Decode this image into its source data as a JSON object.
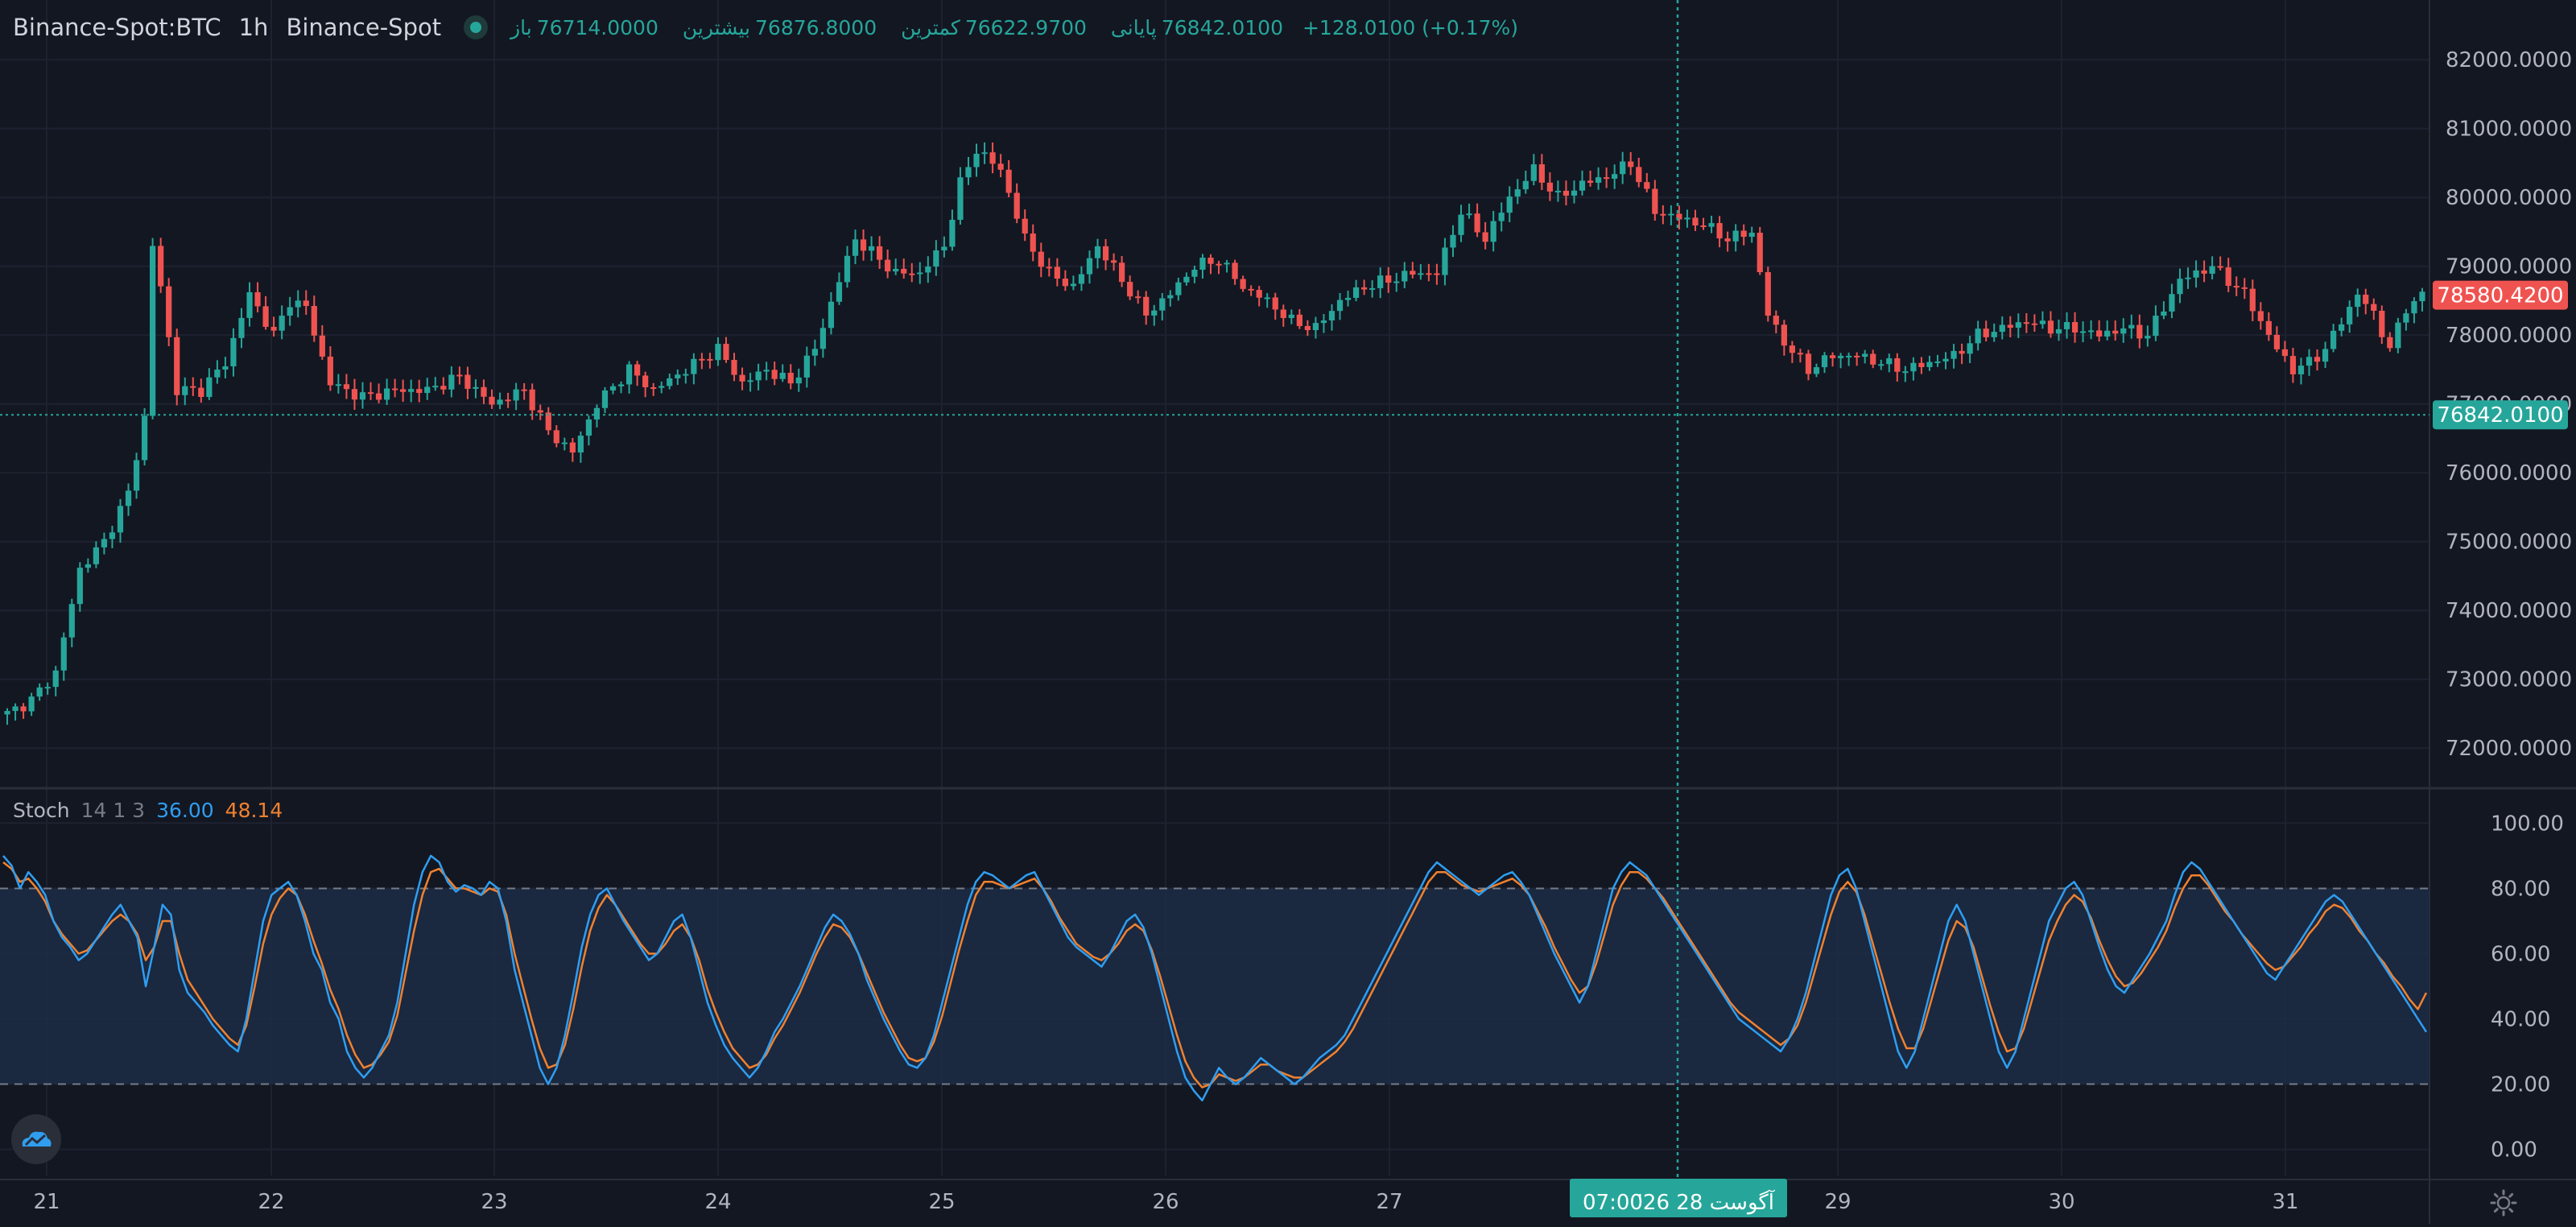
{
  "header": {
    "symbol": "Binance-Spot:BTC",
    "interval": "1h",
    "exchange": "Binance-Spot",
    "open_label": "باز",
    "open_value": "76714.0000",
    "high_label": "بیشترین",
    "high_value": "76876.8000",
    "low_label": "کمترین",
    "low_value": "76622.9700",
    "close_label": "پایانی",
    "close_value": "76842.0100",
    "change": "+128.0100 (+0.17%)"
  },
  "stoch_legend": {
    "name": "Stoch",
    "params": "14 1 3",
    "k_value": "36.00",
    "d_value": "48.14"
  },
  "crosshair": {
    "date_label": "'26 آگوست 28",
    "time_label": "07:00"
  },
  "colors": {
    "background": "#131722",
    "up": "#26a69a",
    "down": "#ef5350",
    "k_line": "#2f9ef0",
    "d_line": "#f0812f",
    "band": "#1c2b45"
  },
  "chart_data": [
    {
      "type": "candlestick",
      "title": "",
      "ylim": [
        71500,
        82400
      ],
      "y_ticks": [
        "72000.0000",
        "73000.0000",
        "74000.0000",
        "75000.0000",
        "76000.0000",
        "77000.0000",
        "78000.0000",
        "79000.0000",
        "80000.0000",
        "81000.0000",
        "82000.0000"
      ],
      "x_ticks": [
        "21",
        "22",
        "23",
        "24",
        "25",
        "26",
        "27",
        "29",
        "30",
        "31"
      ],
      "last_price": {
        "label": "76842.0100",
        "value": 76842.01
      },
      "marker_price": {
        "label": "78580.4200",
        "value": 78580.42
      },
      "close_anchors": [
        [
          0,
          72500
        ],
        [
          3,
          72700
        ],
        [
          6,
          73100
        ],
        [
          9,
          74600
        ],
        [
          12,
          75000
        ],
        [
          15,
          75700
        ],
        [
          17,
          76800
        ],
        [
          18,
          79300
        ],
        [
          19,
          78700
        ],
        [
          21,
          77200
        ],
        [
          24,
          77200
        ],
        [
          27,
          77600
        ],
        [
          30,
          78600
        ],
        [
          33,
          78000
        ],
        [
          35,
          78500
        ],
        [
          37,
          78400
        ],
        [
          40,
          77300
        ],
        [
          44,
          77100
        ],
        [
          48,
          77200
        ],
        [
          52,
          77200
        ],
        [
          56,
          77400
        ],
        [
          60,
          77000
        ],
        [
          64,
          77200
        ],
        [
          67,
          76600
        ],
        [
          70,
          76300
        ],
        [
          73,
          77000
        ],
        [
          77,
          77500
        ],
        [
          80,
          77200
        ],
        [
          84,
          77500
        ],
        [
          88,
          77800
        ],
        [
          91,
          77300
        ],
        [
          94,
          77500
        ],
        [
          97,
          77300
        ],
        [
          100,
          77800
        ],
        [
          103,
          78800
        ],
        [
          105,
          79400
        ],
        [
          107,
          79200
        ],
        [
          110,
          78900
        ],
        [
          113,
          78900
        ],
        [
          116,
          79300
        ],
        [
          118,
          80200
        ],
        [
          120,
          80700
        ],
        [
          123,
          80400
        ],
        [
          126,
          79400
        ],
        [
          129,
          78900
        ],
        [
          132,
          78700
        ],
        [
          135,
          79300
        ],
        [
          138,
          78800
        ],
        [
          141,
          78300
        ],
        [
          144,
          78600
        ],
        [
          147,
          79000
        ],
        [
          150,
          79100
        ],
        [
          153,
          78700
        ],
        [
          156,
          78500
        ],
        [
          159,
          78200
        ],
        [
          162,
          78100
        ],
        [
          165,
          78500
        ],
        [
          168,
          78700
        ],
        [
          171,
          78800
        ],
        [
          174,
          78900
        ],
        [
          177,
          78900
        ],
        [
          180,
          79800
        ],
        [
          183,
          79400
        ],
        [
          186,
          80000
        ],
        [
          189,
          80400
        ],
        [
          192,
          80000
        ],
        [
          195,
          80200
        ],
        [
          198,
          80300
        ],
        [
          201,
          80500
        ],
        [
          204,
          79800
        ],
        [
          207,
          79700
        ],
        [
          210,
          79600
        ],
        [
          213,
          79400
        ],
        [
          216,
          79500
        ],
        [
          218,
          78300
        ],
        [
          220,
          77900
        ],
        [
          223,
          77500
        ],
        [
          226,
          77700
        ],
        [
          229,
          77700
        ],
        [
          232,
          77600
        ],
        [
          235,
          77500
        ],
        [
          238,
          77600
        ],
        [
          241,
          77700
        ],
        [
          244,
          78000
        ],
        [
          247,
          78100
        ],
        [
          250,
          78200
        ],
        [
          253,
          78100
        ],
        [
          256,
          78100
        ],
        [
          259,
          78000
        ],
        [
          262,
          78100
        ],
        [
          265,
          78000
        ],
        [
          267,
          78400
        ],
        [
          269,
          78800
        ],
        [
          271,
          78900
        ],
        [
          273,
          79000
        ],
        [
          275,
          78800
        ],
        [
          277,
          78600
        ],
        [
          279,
          78200
        ],
        [
          281,
          77800
        ],
        [
          283,
          77500
        ],
        [
          285,
          77600
        ],
        [
          287,
          77800
        ],
        [
          289,
          78200
        ],
        [
          291,
          78600
        ],
        [
          293,
          78300
        ],
        [
          295,
          77800
        ],
        [
          297,
          78400
        ],
        [
          299,
          78580
        ]
      ]
    },
    {
      "type": "line",
      "title": "",
      "ylim": [
        -8,
        108
      ],
      "y_ticks": [
        "0.00",
        "20.00",
        "40.00",
        "60.00",
        "80.00",
        "100.00"
      ],
      "band": [
        20,
        80
      ],
      "series": [
        {
          "name": "",
          "values": [
            90,
            87,
            80,
            85,
            82,
            78,
            70,
            65,
            62,
            58,
            60,
            64,
            68,
            72,
            75,
            70,
            65,
            50,
            62,
            75,
            72,
            55,
            48,
            45,
            42,
            38,
            35,
            32,
            30,
            40,
            55,
            70,
            78,
            80,
            82,
            78,
            70,
            60,
            55,
            45,
            40,
            30,
            25,
            22,
            25,
            30,
            35,
            45,
            60,
            75,
            85,
            90,
            88,
            82,
            79,
            81,
            80,
            78,
            82,
            80,
            70,
            55,
            45,
            35,
            25,
            20,
            25,
            35,
            48,
            62,
            72,
            78,
            80,
            75,
            70,
            66,
            62,
            58,
            60,
            65,
            70,
            72,
            65,
            55,
            45,
            38,
            32,
            28,
            25,
            22,
            25,
            30,
            36,
            40,
            45,
            50,
            56,
            62,
            68,
            72,
            70,
            66,
            60,
            52,
            46,
            40,
            35,
            30,
            26,
            25,
            28,
            35,
            45,
            55,
            65,
            75,
            82,
            85,
            84,
            82,
            80,
            82,
            84,
            85,
            80,
            75,
            70,
            65,
            62,
            60,
            58,
            56,
            60,
            65,
            70,
            72,
            68,
            60,
            50,
            40,
            30,
            22,
            18,
            15,
            20,
            25,
            22,
            20,
            22,
            25,
            28,
            26,
            24,
            22,
            20,
            22,
            25,
            28,
            30,
            32,
            35,
            40,
            45,
            50,
            55,
            60,
            65,
            70,
            75,
            80,
            85,
            88,
            86,
            84,
            82,
            80,
            78,
            80,
            82,
            84,
            85,
            82,
            78,
            72,
            66,
            60,
            55,
            50,
            45,
            50,
            60,
            70,
            80,
            85,
            88,
            86,
            84,
            80,
            76,
            72,
            68,
            64,
            60,
            56,
            52,
            48,
            44,
            40,
            38,
            36,
            34,
            32,
            30,
            34,
            40,
            48,
            58,
            68,
            78,
            84,
            86,
            80,
            70,
            60,
            50,
            40,
            30,
            25,
            30,
            40,
            50,
            60,
            70,
            75,
            70,
            60,
            50,
            40,
            30,
            25,
            30,
            40,
            50,
            60,
            70,
            75,
            80,
            82,
            78,
            70,
            62,
            55,
            50,
            48,
            52,
            56,
            60,
            65,
            70,
            78,
            85,
            88,
            86,
            82,
            78,
            74,
            70,
            66,
            62,
            58,
            54,
            52,
            56,
            60,
            64,
            68,
            72,
            76,
            78,
            76,
            72,
            68,
            64,
            60,
            56,
            52,
            48,
            44,
            40,
            36
          ]
        },
        {
          "name": "",
          "values": [
            88,
            86,
            82,
            83,
            80,
            76,
            70,
            66,
            63,
            60,
            61,
            64,
            67,
            70,
            72,
            70,
            66,
            58,
            62,
            70,
            70,
            60,
            52,
            48,
            44,
            40,
            37,
            34,
            32,
            38,
            50,
            63,
            72,
            77,
            80,
            78,
            72,
            64,
            57,
            49,
            43,
            35,
            29,
            25,
            26,
            29,
            33,
            41,
            54,
            67,
            78,
            85,
            86,
            83,
            80,
            80,
            79,
            78,
            80,
            79,
            72,
            60,
            50,
            40,
            31,
            25,
            26,
            32,
            43,
            56,
            67,
            74,
            78,
            75,
            71,
            67,
            63,
            60,
            60,
            63,
            67,
            69,
            65,
            58,
            49,
            42,
            36,
            31,
            28,
            25,
            26,
            29,
            34,
            38,
            43,
            48,
            54,
            60,
            65,
            69,
            68,
            65,
            60,
            54,
            48,
            42,
            37,
            32,
            28,
            27,
            28,
            33,
            41,
            51,
            61,
            70,
            78,
            82,
            82,
            81,
            80,
            81,
            82,
            83,
            80,
            76,
            71,
            67,
            63,
            61,
            59,
            58,
            60,
            63,
            67,
            69,
            67,
            61,
            53,
            44,
            35,
            27,
            22,
            19,
            20,
            23,
            22,
            21,
            22,
            24,
            26,
            26,
            24,
            23,
            22,
            22,
            24,
            26,
            28,
            30,
            33,
            37,
            42,
            47,
            52,
            57,
            62,
            67,
            72,
            77,
            82,
            85,
            85,
            83,
            81,
            80,
            79,
            80,
            81,
            82,
            83,
            81,
            78,
            73,
            68,
            62,
            57,
            52,
            48,
            50,
            57,
            66,
            75,
            81,
            85,
            85,
            83,
            80,
            77,
            73,
            69,
            65,
            61,
            57,
            53,
            49,
            45,
            42,
            40,
            38,
            36,
            34,
            32,
            34,
            38,
            45,
            54,
            63,
            72,
            79,
            82,
            79,
            72,
            63,
            54,
            45,
            37,
            31,
            31,
            37,
            46,
            55,
            64,
            70,
            68,
            62,
            53,
            44,
            36,
            30,
            31,
            37,
            46,
            55,
            64,
            70,
            75,
            78,
            76,
            71,
            64,
            58,
            53,
            50,
            51,
            54,
            58,
            62,
            67,
            74,
            80,
            84,
            84,
            81,
            77,
            73,
            70,
            66,
            63,
            60,
            57,
            55,
            56,
            59,
            62,
            66,
            69,
            73,
            75,
            74,
            71,
            67,
            64,
            60,
            57,
            53,
            50,
            46,
            43,
            48
          ]
        }
      ],
      "k_series_index": 0,
      "d_series_index": 1
    }
  ]
}
